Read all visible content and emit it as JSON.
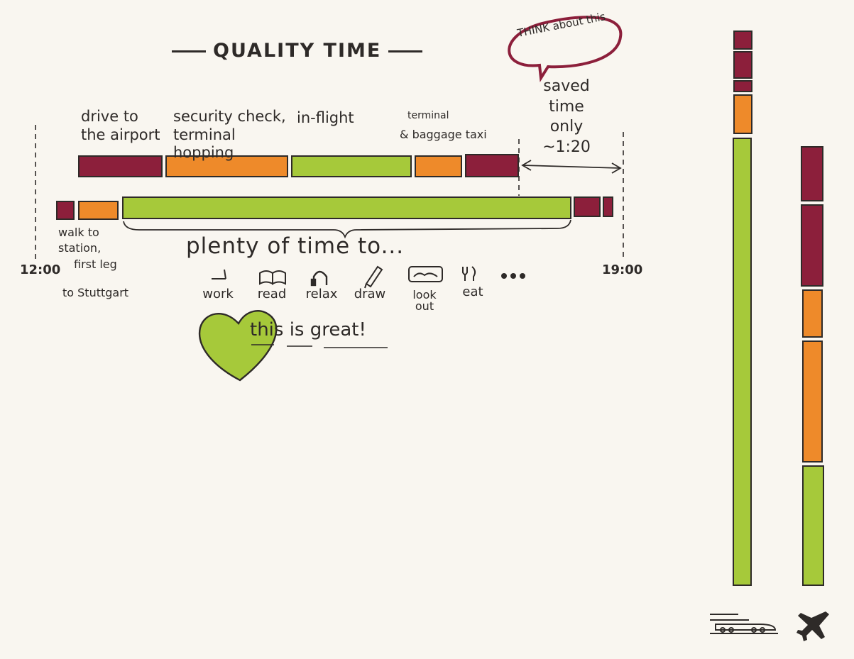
{
  "title": "QUALITY TIME",
  "colors": {
    "car": "#8c1f3b",
    "terminal": "#ee8a2a",
    "travel": "#a6c93a",
    "ink": "#2e2a28",
    "paper": "#f9f6f0"
  },
  "flight_labels": {
    "drive": "drive to the airport",
    "security": "security check, terminal hopping",
    "inflight": "in-flight",
    "terminal_taxi_1": "terminal",
    "terminal_taxi_2": "& baggage taxi"
  },
  "train_labels": {
    "walk_1": "walk to",
    "walk_2": "station,",
    "firstleg_1": "first leg",
    "firstleg_2": "to Stuttgart"
  },
  "callout": {
    "bubble": "THINK about this",
    "saved_1": "saved",
    "saved_2": "time",
    "saved_3": "only",
    "saved_4": "~1:20"
  },
  "times": {
    "start": "12:00",
    "end": "19:00"
  },
  "plenty": "plenty of time to...",
  "activities": [
    {
      "label": "work",
      "icon": "laptop-icon"
    },
    {
      "label": "read",
      "icon": "book-icon"
    },
    {
      "label": "relax",
      "icon": "headphones-icon"
    },
    {
      "label": "draw",
      "icon": "pencil-icon"
    },
    {
      "label": "look out",
      "icon": "window-icon"
    },
    {
      "label": "eat",
      "icon": "fork-knife-icon"
    },
    {
      "label": "...",
      "icon": "ellipsis-icon"
    }
  ],
  "great": "this is great!",
  "vertical_icons": {
    "left": "train-icon",
    "right": "plane-icon"
  }
}
